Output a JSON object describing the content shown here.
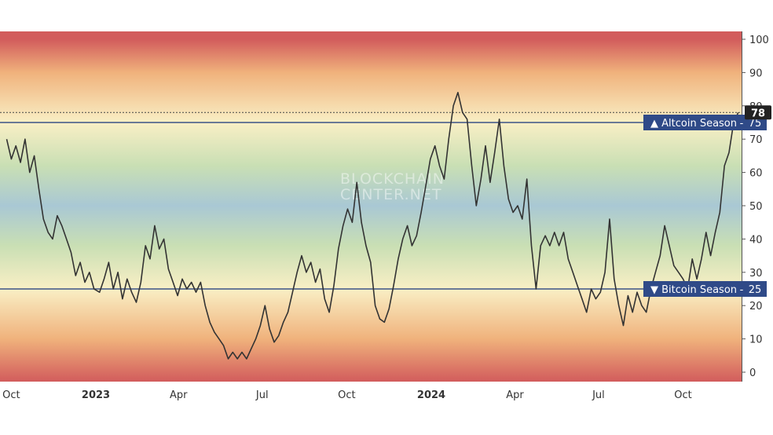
{
  "watermark": [
    "BLOCKCHAIN",
    "CENTER.NET"
  ],
  "chart_data": {
    "type": "line",
    "title": "",
    "xlabel": "",
    "ylabel": "",
    "ylim": [
      0,
      100
    ],
    "y_ticks": [
      0,
      10,
      20,
      30,
      40,
      50,
      60,
      70,
      80,
      90,
      100
    ],
    "x_ticks": [
      {
        "label": "Oct",
        "date": "2022-10-01",
        "bold": false
      },
      {
        "label": "2023",
        "date": "2023-01-01",
        "bold": true
      },
      {
        "label": "Apr",
        "date": "2023-04-01",
        "bold": false
      },
      {
        "label": "Jul",
        "date": "2023-07-01",
        "bold": false
      },
      {
        "label": "Oct",
        "date": "2023-10-01",
        "bold": false
      },
      {
        "label": "2024",
        "date": "2024-01-01",
        "bold": true
      },
      {
        "label": "Apr",
        "date": "2024-04-01",
        "bold": false
      },
      {
        "label": "Jul",
        "date": "2024-07-01",
        "bold": false
      },
      {
        "label": "Oct",
        "date": "2024-10-01",
        "bold": false
      }
    ],
    "x_range": [
      "2022-09-26",
      "2024-12-30"
    ],
    "current_value": {
      "label": "78",
      "value": 78
    },
    "thresholds": [
      {
        "name": "Altcoin Season",
        "arrow": "▲",
        "label": "75",
        "value": 75
      },
      {
        "name": "Bitcoin Season",
        "arrow": "▼",
        "label": "25",
        "value": 25
      }
    ],
    "background_gradient": [
      {
        "value": 100,
        "color": "#d25c5c"
      },
      {
        "value": 90,
        "color": "#f0b27c"
      },
      {
        "value": 75,
        "color": "#f9efc5"
      },
      {
        "value": 62,
        "color": "#c9dfb4"
      },
      {
        "value": 50,
        "color": "#a9c8d4"
      },
      {
        "value": 38,
        "color": "#c9dfb4"
      },
      {
        "value": 25,
        "color": "#f9efc5"
      },
      {
        "value": 10,
        "color": "#f0b27c"
      },
      {
        "value": -3,
        "color": "#d25c5c"
      }
    ],
    "colors": {
      "line": "#333333",
      "threshold": "#3b5287",
      "box": "#2f4a88"
    },
    "series": [
      {
        "points": [
          [
            "2022-09-26",
            70
          ],
          [
            "2022-10-01",
            64
          ],
          [
            "2022-10-06",
            68
          ],
          [
            "2022-10-11",
            63
          ],
          [
            "2022-10-16",
            70
          ],
          [
            "2022-10-21",
            60
          ],
          [
            "2022-10-26",
            65
          ],
          [
            "2022-10-31",
            55
          ],
          [
            "2022-11-05",
            46
          ],
          [
            "2022-11-10",
            42
          ],
          [
            "2022-11-15",
            40
          ],
          [
            "2022-11-20",
            47
          ],
          [
            "2022-11-25",
            44
          ],
          [
            "2022-11-30",
            40
          ],
          [
            "2022-12-05",
            36
          ],
          [
            "2022-12-10",
            29
          ],
          [
            "2022-12-15",
            33
          ],
          [
            "2022-12-20",
            27
          ],
          [
            "2022-12-25",
            30
          ],
          [
            "2022-12-30",
            25
          ],
          [
            "2023-01-05",
            24
          ],
          [
            "2023-01-10",
            28
          ],
          [
            "2023-01-15",
            33
          ],
          [
            "2023-01-20",
            25
          ],
          [
            "2023-01-25",
            30
          ],
          [
            "2023-01-30",
            22
          ],
          [
            "2023-02-04",
            28
          ],
          [
            "2023-02-09",
            24
          ],
          [
            "2023-02-14",
            21
          ],
          [
            "2023-02-19",
            27
          ],
          [
            "2023-02-24",
            38
          ],
          [
            "2023-03-01",
            34
          ],
          [
            "2023-03-06",
            44
          ],
          [
            "2023-03-11",
            37
          ],
          [
            "2023-03-16",
            40
          ],
          [
            "2023-03-21",
            31
          ],
          [
            "2023-03-26",
            27
          ],
          [
            "2023-03-31",
            23
          ],
          [
            "2023-04-05",
            28
          ],
          [
            "2023-04-10",
            25
          ],
          [
            "2023-04-15",
            27
          ],
          [
            "2023-04-20",
            24
          ],
          [
            "2023-04-25",
            27
          ],
          [
            "2023-04-30",
            20
          ],
          [
            "2023-05-05",
            15
          ],
          [
            "2023-05-10",
            12
          ],
          [
            "2023-05-15",
            10
          ],
          [
            "2023-05-20",
            8
          ],
          [
            "2023-05-25",
            4
          ],
          [
            "2023-05-30",
            6
          ],
          [
            "2023-06-04",
            4
          ],
          [
            "2023-06-09",
            6
          ],
          [
            "2023-06-14",
            4
          ],
          [
            "2023-06-19",
            7
          ],
          [
            "2023-06-24",
            10
          ],
          [
            "2023-06-29",
            14
          ],
          [
            "2023-07-04",
            20
          ],
          [
            "2023-07-09",
            13
          ],
          [
            "2023-07-14",
            9
          ],
          [
            "2023-07-19",
            11
          ],
          [
            "2023-07-24",
            15
          ],
          [
            "2023-07-29",
            18
          ],
          [
            "2023-08-03",
            24
          ],
          [
            "2023-08-08",
            30
          ],
          [
            "2023-08-13",
            35
          ],
          [
            "2023-08-18",
            30
          ],
          [
            "2023-08-23",
            33
          ],
          [
            "2023-08-28",
            27
          ],
          [
            "2023-09-02",
            31
          ],
          [
            "2023-09-07",
            22
          ],
          [
            "2023-09-12",
            18
          ],
          [
            "2023-09-17",
            26
          ],
          [
            "2023-09-22",
            37
          ],
          [
            "2023-09-27",
            44
          ],
          [
            "2023-10-02",
            49
          ],
          [
            "2023-10-07",
            45
          ],
          [
            "2023-10-12",
            57
          ],
          [
            "2023-10-17",
            45
          ],
          [
            "2023-10-22",
            38
          ],
          [
            "2023-10-27",
            33
          ],
          [
            "2023-11-01",
            20
          ],
          [
            "2023-11-06",
            16
          ],
          [
            "2023-11-11",
            15
          ],
          [
            "2023-11-16",
            19
          ],
          [
            "2023-11-21",
            26
          ],
          [
            "2023-11-26",
            34
          ],
          [
            "2023-12-01",
            40
          ],
          [
            "2023-12-06",
            44
          ],
          [
            "2023-12-11",
            38
          ],
          [
            "2023-12-16",
            41
          ],
          [
            "2023-12-21",
            48
          ],
          [
            "2023-12-26",
            56
          ],
          [
            "2023-12-31",
            64
          ],
          [
            "2024-01-05",
            68
          ],
          [
            "2024-01-10",
            62
          ],
          [
            "2024-01-15",
            58
          ],
          [
            "2024-01-20",
            70
          ],
          [
            "2024-01-25",
            80
          ],
          [
            "2024-01-30",
            84
          ],
          [
            "2024-02-04",
            78
          ],
          [
            "2024-02-09",
            76
          ],
          [
            "2024-02-14",
            62
          ],
          [
            "2024-02-19",
            50
          ],
          [
            "2024-02-24",
            58
          ],
          [
            "2024-02-29",
            68
          ],
          [
            "2024-03-05",
            57
          ],
          [
            "2024-03-10",
            66
          ],
          [
            "2024-03-15",
            76
          ],
          [
            "2024-03-20",
            62
          ],
          [
            "2024-03-25",
            52
          ],
          [
            "2024-03-30",
            48
          ],
          [
            "2024-04-04",
            50
          ],
          [
            "2024-04-09",
            46
          ],
          [
            "2024-04-14",
            58
          ],
          [
            "2024-04-19",
            38
          ],
          [
            "2024-04-24",
            25
          ],
          [
            "2024-04-29",
            38
          ],
          [
            "2024-05-04",
            41
          ],
          [
            "2024-05-09",
            38
          ],
          [
            "2024-05-14",
            42
          ],
          [
            "2024-05-19",
            38
          ],
          [
            "2024-05-24",
            42
          ],
          [
            "2024-05-29",
            34
          ],
          [
            "2024-06-03",
            30
          ],
          [
            "2024-06-08",
            26
          ],
          [
            "2024-06-13",
            22
          ],
          [
            "2024-06-18",
            18
          ],
          [
            "2024-06-23",
            25
          ],
          [
            "2024-06-28",
            22
          ],
          [
            "2024-07-03",
            24
          ],
          [
            "2024-07-08",
            30
          ],
          [
            "2024-07-13",
            46
          ],
          [
            "2024-07-18",
            28
          ],
          [
            "2024-07-23",
            20
          ],
          [
            "2024-07-28",
            14
          ],
          [
            "2024-08-02",
            23
          ],
          [
            "2024-08-07",
            18
          ],
          [
            "2024-08-12",
            24
          ],
          [
            "2024-08-17",
            20
          ],
          [
            "2024-08-22",
            18
          ],
          [
            "2024-08-27",
            25
          ],
          [
            "2024-09-01",
            30
          ],
          [
            "2024-09-06",
            35
          ],
          [
            "2024-09-11",
            44
          ],
          [
            "2024-09-16",
            38
          ],
          [
            "2024-09-21",
            32
          ],
          [
            "2024-09-26",
            30
          ],
          [
            "2024-10-01",
            28
          ],
          [
            "2024-10-06",
            25
          ],
          [
            "2024-10-11",
            34
          ],
          [
            "2024-10-16",
            28
          ],
          [
            "2024-10-21",
            34
          ],
          [
            "2024-10-26",
            42
          ],
          [
            "2024-10-31",
            35
          ],
          [
            "2024-11-05",
            42
          ],
          [
            "2024-11-10",
            48
          ],
          [
            "2024-11-15",
            62
          ],
          [
            "2024-11-20",
            66
          ],
          [
            "2024-11-25",
            75
          ],
          [
            "2024-11-30",
            78
          ]
        ]
      }
    ]
  }
}
